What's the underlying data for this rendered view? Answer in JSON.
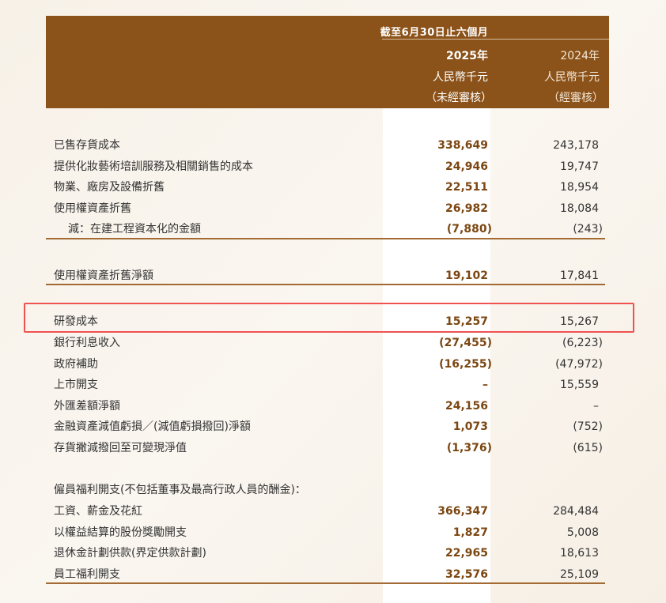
{
  "header": {
    "period": "截至6月30日止六個月",
    "col_2025": {
      "year": "2025年",
      "currency": "人民幣千元",
      "status": "（未經審核）"
    },
    "col_2024": {
      "year": "2024年",
      "currency": "人民幣千元",
      "status": "（經審核）"
    }
  },
  "rows": [
    {
      "label": "已售存貨成本",
      "v2025": "338,649",
      "v2024": "243,178"
    },
    {
      "label": "提供化妝藝術培訓服務及相關銷售的成本",
      "v2025": "24,946",
      "v2024": "19,747"
    },
    {
      "label": "物業、廠房及設備折舊",
      "v2025": "22,511",
      "v2024": "18,954"
    },
    {
      "label": "使用權資產折舊",
      "v2025": "26,982",
      "v2024": "18,084"
    },
    {
      "label": "減：在建工程資本化的金額",
      "v2025": "(7,880)",
      "v2024": "(243)"
    },
    {
      "label": "使用權資產折舊淨額",
      "v2025": "19,102",
      "v2024": "17,841"
    },
    {
      "label": "研發成本",
      "v2025": "15,257",
      "v2024": "15,267"
    },
    {
      "label": "銀行利息收入",
      "v2025": "(27,455)",
      "v2024": "(6,223)"
    },
    {
      "label": "政府補助",
      "v2025": "(16,255)",
      "v2024": "(47,972)"
    },
    {
      "label": "上市開支",
      "v2025": "–",
      "v2024": "15,559"
    },
    {
      "label": "外匯差額淨額",
      "v2025": "24,156",
      "v2024": "–"
    },
    {
      "label": "金融資產減值虧損／(減值虧損撥回)淨額",
      "v2025": "1,073",
      "v2024": "(752)"
    },
    {
      "label": "存貨撇減撥回至可變現淨值",
      "v2025": "(1,376)",
      "v2024": "(615)"
    },
    {
      "label": "僱員福利開支(不包括董事及最高行政人員的酬金)：",
      "v2025": "",
      "v2024": ""
    },
    {
      "label": "工資、薪金及花紅",
      "v2025": "366,347",
      "v2024": "284,484"
    },
    {
      "label": "以權益結算的股份獎勵開支",
      "v2025": "1,827",
      "v2024": "5,008"
    },
    {
      "label": "退休金計劃供款(界定供款計劃)",
      "v2025": "22,965",
      "v2024": "18,613"
    },
    {
      "label": "員工福利開支",
      "v2025": "32,576",
      "v2024": "25,109"
    }
  ],
  "highlighted_row": "研發成本",
  "colors": {
    "header_bg": "#8b5219",
    "value_2025": "#7b4611",
    "highlight_border": "#f05252"
  }
}
